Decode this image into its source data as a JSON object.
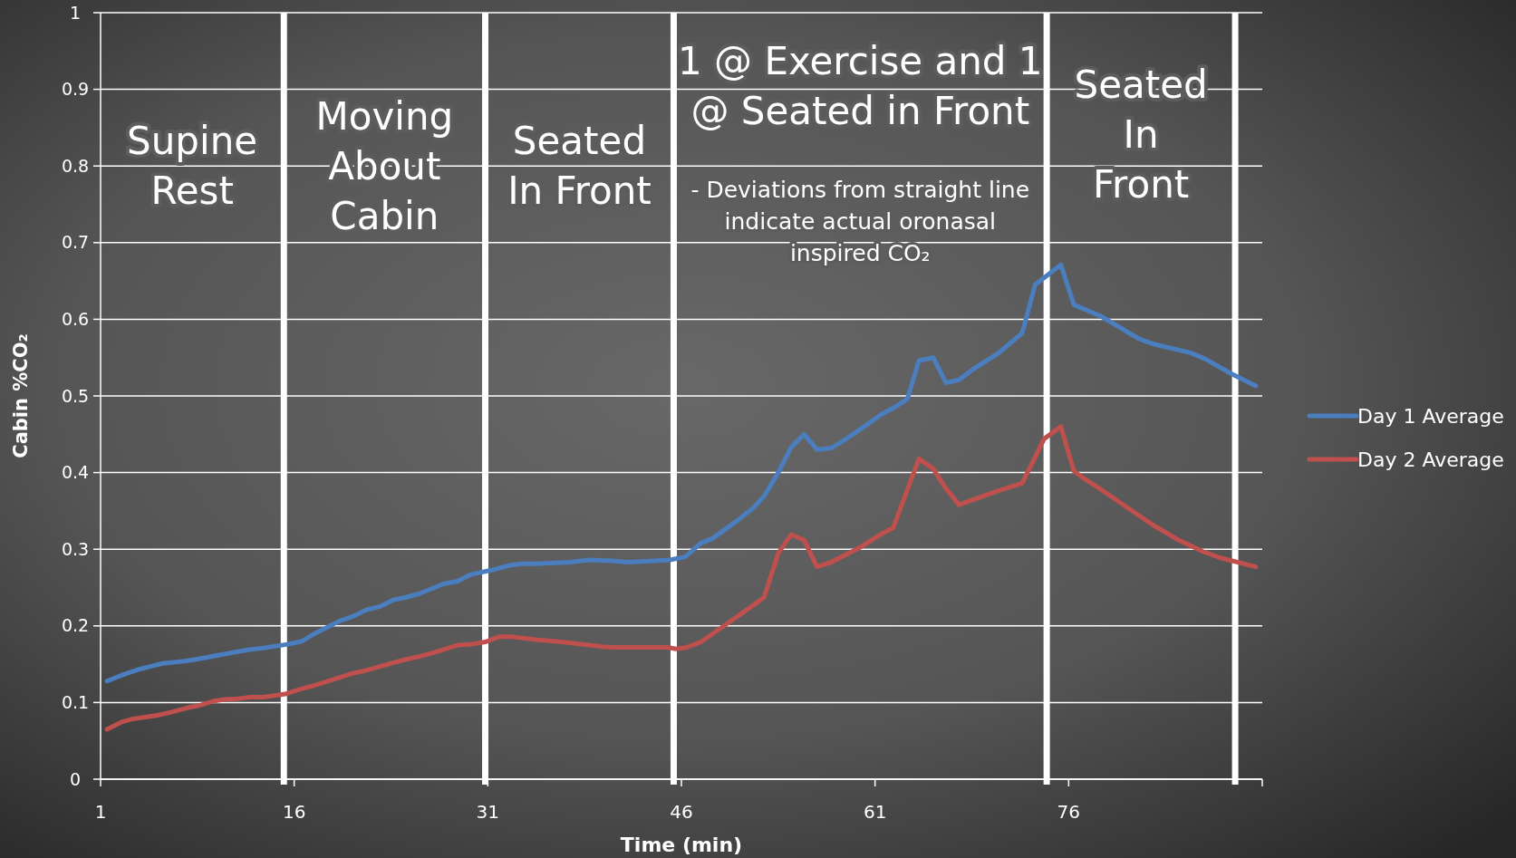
{
  "chart_data": {
    "type": "line",
    "xlabel": "Time (min)",
    "ylabel": "Cabin %CO₂",
    "xlim": [
      1,
      91
    ],
    "xticks": [
      1,
      16,
      31,
      46,
      61,
      76
    ],
    "ylim": [
      0,
      1
    ],
    "yticks": [
      0,
      0.1,
      0.2,
      0.3,
      0.4,
      0.5,
      0.6,
      0.7,
      0.8,
      0.9,
      1
    ],
    "grid": "y",
    "legend": "right",
    "line_style": "solid",
    "marker": "none",
    "ref_lines": [
      {
        "axis": "x",
        "value": 15.2,
        "label": "Supine Rest",
        "color": "#ffffff"
      },
      {
        "axis": "x",
        "value": 30.8,
        "label": "Moving About Cabin",
        "color": "#ffffff"
      },
      {
        "axis": "x",
        "value": 45.4,
        "label": "Seated In Front",
        "color": "#ffffff"
      },
      {
        "axis": "x",
        "value": 74.3,
        "label": "1 @ Exercise and 1 @ Seated in Front",
        "color": "#ffffff"
      },
      {
        "axis": "x",
        "value": 88.9,
        "label": "Seated In Front",
        "color": "#ffffff"
      }
    ],
    "annotations": [
      "- Deviations from straight line indicate actual oronasal inspired CO₂"
    ],
    "series": [
      {
        "name": "Day 1 Average",
        "color": "#4a7ebf",
        "x": [
          1.5,
          2.7,
          3.9,
          5.8,
          7.5,
          8.6,
          10.2,
          12.5,
          13.6,
          15.5,
          16.6,
          17.7,
          19.6,
          20.5,
          21.6,
          22.6,
          23.7,
          24.6,
          25.7,
          27.6,
          28.6,
          29.7,
          31.6,
          32.7,
          33.6,
          34.7,
          35.8,
          37.4,
          38.8,
          40.7,
          41.8,
          42.9,
          45.1,
          46.3,
          47.5,
          48.4,
          50.3,
          51.5,
          52.4,
          53.5,
          54.5,
          55.5,
          56.5,
          57.6,
          58.5,
          59.9,
          61.5,
          62.4,
          63.5,
          64.4,
          65.5,
          66.5,
          67.5,
          68.6,
          70.5,
          72.4,
          73.4,
          75.4,
          76.4,
          78.5,
          81.4,
          82.5,
          85.5,
          86.6,
          88.6,
          90.5
        ],
        "values": [
          0.128,
          0.136,
          0.143,
          0.151,
          0.154,
          0.157,
          0.162,
          0.169,
          0.171,
          0.176,
          0.18,
          0.191,
          0.207,
          0.212,
          0.221,
          0.225,
          0.234,
          0.237,
          0.242,
          0.255,
          0.258,
          0.267,
          0.274,
          0.279,
          0.281,
          0.281,
          0.282,
          0.283,
          0.286,
          0.285,
          0.283,
          0.284,
          0.286,
          0.29,
          0.308,
          0.314,
          0.337,
          0.353,
          0.369,
          0.4,
          0.433,
          0.45,
          0.43,
          0.432,
          0.441,
          0.457,
          0.476,
          0.484,
          0.496,
          0.546,
          0.55,
          0.517,
          0.521,
          0.535,
          0.555,
          0.582,
          0.645,
          0.671,
          0.619,
          0.604,
          0.575,
          0.568,
          0.556,
          0.548,
          0.529,
          0.513
        ]
      },
      {
        "name": "Day 2 Average",
        "color": "#c0504d",
        "x": [
          1.5,
          2.7,
          3.6,
          5.3,
          6.4,
          7.7,
          8.6,
          9.8,
          10.6,
          11.6,
          12.6,
          13.6,
          15.3,
          16.6,
          17.5,
          19.6,
          20.5,
          21.6,
          23.7,
          24.6,
          25.7,
          26.8,
          28.7,
          29.7,
          30.8,
          31.9,
          32.8,
          34.7,
          36.7,
          37.8,
          39.8,
          40.8,
          42.9,
          44.9,
          45.6,
          46.4,
          47.5,
          49.3,
          51.4,
          52.4,
          53.5,
          54.5,
          55.5,
          56.5,
          57.6,
          59.9,
          61.5,
          62.4,
          64.4,
          65.5,
          66.5,
          67.5,
          70.5,
          72.4,
          74.1,
          75.4,
          76.4,
          77.3,
          78.5,
          82.4,
          84.4,
          86.4,
          87.7,
          90.5
        ],
        "values": [
          0.065,
          0.075,
          0.079,
          0.083,
          0.087,
          0.093,
          0.096,
          0.102,
          0.104,
          0.105,
          0.107,
          0.107,
          0.111,
          0.118,
          0.122,
          0.133,
          0.138,
          0.142,
          0.152,
          0.156,
          0.16,
          0.165,
          0.175,
          0.176,
          0.179,
          0.186,
          0.186,
          0.182,
          0.179,
          0.177,
          0.173,
          0.172,
          0.172,
          0.172,
          0.17,
          0.172,
          0.179,
          0.2,
          0.225,
          0.237,
          0.295,
          0.319,
          0.312,
          0.277,
          0.283,
          0.303,
          0.32,
          0.328,
          0.418,
          0.405,
          0.379,
          0.358,
          0.376,
          0.386,
          0.444,
          0.46,
          0.402,
          0.391,
          0.378,
          0.333,
          0.313,
          0.297,
          0.289,
          0.277
        ]
      }
    ]
  }
}
